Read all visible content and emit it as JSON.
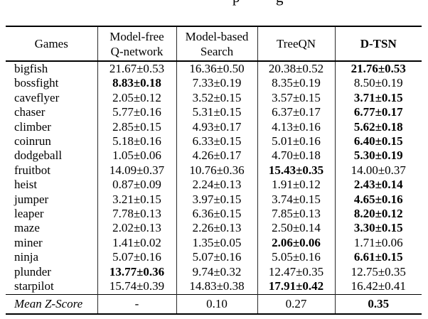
{
  "partial_caption": {
    "fragment_letters": [
      "p",
      "g"
    ]
  },
  "table": {
    "headers": [
      {
        "label": "Games",
        "bold": false
      },
      {
        "label": "Model-free\nQ-network",
        "bold": false
      },
      {
        "label": "Model-based\nSearch",
        "bold": false
      },
      {
        "label": "TreeQN",
        "bold": false
      },
      {
        "label": "D-TSN",
        "bold": true
      }
    ],
    "rows": [
      {
        "game": "bigfish",
        "values": [
          "21.67±0.53",
          "16.36±0.50",
          "20.38±0.52",
          "21.76±0.53"
        ],
        "bold_index": 3
      },
      {
        "game": "bossfight",
        "values": [
          "8.83±0.18",
          "7.33±0.19",
          "8.35±0.19",
          "8.50±0.19"
        ],
        "bold_index": 0
      },
      {
        "game": "caveflyer",
        "values": [
          "2.05±0.12",
          "3.52±0.15",
          "3.57±0.15",
          "3.71±0.15"
        ],
        "bold_index": 3
      },
      {
        "game": "chaser",
        "values": [
          "5.77±0.16",
          "5.31±0.15",
          "6.37±0.17",
          "6.77±0.17"
        ],
        "bold_index": 3
      },
      {
        "game": "climber",
        "values": [
          "2.85±0.15",
          "4.93±0.17",
          "4.13±0.16",
          "5.62±0.18"
        ],
        "bold_index": 3
      },
      {
        "game": "coinrun",
        "values": [
          "5.18±0.16",
          "6.33±0.15",
          "5.01±0.16",
          "6.40±0.15"
        ],
        "bold_index": 3
      },
      {
        "game": "dodgeball",
        "values": [
          "1.05±0.06",
          "4.26±0.17",
          "4.70±0.18",
          "5.30±0.19"
        ],
        "bold_index": 3
      },
      {
        "game": "fruitbot",
        "values": [
          "14.09±0.37",
          "10.76±0.36",
          "15.43±0.35",
          "14.00±0.37"
        ],
        "bold_index": 2
      },
      {
        "game": "heist",
        "values": [
          "0.87±0.09",
          "2.24±0.13",
          "1.91±0.12",
          "2.43±0.14"
        ],
        "bold_index": 3
      },
      {
        "game": "jumper",
        "values": [
          "3.21±0.15",
          "3.97±0.15",
          "3.74±0.15",
          "4.65±0.16"
        ],
        "bold_index": 3
      },
      {
        "game": "leaper",
        "values": [
          "7.78±0.13",
          "6.36±0.15",
          "7.85±0.13",
          "8.20±0.12"
        ],
        "bold_index": 3
      },
      {
        "game": "maze",
        "values": [
          "2.02±0.13",
          "2.26±0.13",
          "2.50±0.14",
          "3.30±0.15"
        ],
        "bold_index": 3
      },
      {
        "game": "miner",
        "values": [
          "1.41±0.02",
          "1.35±0.05",
          "2.06±0.06",
          "1.71±0.06"
        ],
        "bold_index": 2
      },
      {
        "game": "ninja",
        "values": [
          "5.07±0.16",
          "5.07±0.16",
          "5.05±0.16",
          "6.61±0.15"
        ],
        "bold_index": 3
      },
      {
        "game": "plunder",
        "values": [
          "13.77±0.36",
          "9.74±0.32",
          "12.47±0.35",
          "12.75±0.35"
        ],
        "bold_index": 0
      },
      {
        "game": "starpilot",
        "values": [
          "15.74±0.39",
          "14.83±0.38",
          "17.91±0.42",
          "16.42±0.41"
        ],
        "bold_index": 2
      }
    ],
    "footer": {
      "label": "Mean Z-Score",
      "values": [
        "-",
        "0.10",
        "0.27",
        "0.35"
      ],
      "bold_index": 3
    }
  }
}
